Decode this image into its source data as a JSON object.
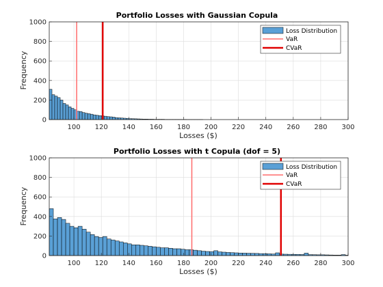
{
  "chart_data": [
    {
      "type": "bar",
      "title": "Portfolio Losses with Gaussian Copula",
      "xlabel": "Losses ($)",
      "ylabel": "Frequency",
      "xlim": [
        82,
        300
      ],
      "ylim": [
        0,
        1000
      ],
      "xticks": [
        "100",
        "120",
        "140",
        "160",
        "180",
        "200",
        "220",
        "240",
        "260",
        "280",
        "300"
      ],
      "yticks": [
        "0",
        "200",
        "400",
        "600",
        "800",
        "1000"
      ],
      "grid": true,
      "legend_position": "top-right",
      "bin_start": 82,
      "bin_width": 2,
      "series": [
        {
          "name": "Loss Distribution",
          "color": "#5aa0d6",
          "values": [
            310,
            255,
            240,
            225,
            200,
            165,
            150,
            130,
            115,
            100,
            85,
            82,
            72,
            65,
            60,
            55,
            48,
            44,
            40,
            38,
            34,
            30,
            28,
            25,
            20,
            18,
            16,
            14,
            12,
            10,
            9,
            8,
            7,
            6,
            5,
            5,
            4,
            4,
            3,
            3,
            3,
            3,
            2,
            2,
            2,
            2,
            2,
            2,
            2,
            2,
            1,
            1,
            1,
            1,
            1,
            1,
            0,
            0,
            0,
            0,
            0,
            0,
            0,
            0,
            0,
            0,
            0,
            0,
            0,
            0,
            0,
            0,
            0,
            0,
            0,
            0,
            0,
            0,
            0,
            0,
            0,
            0,
            0,
            0,
            0,
            0,
            0,
            0,
            0,
            0,
            0,
            0,
            0,
            0,
            0,
            0,
            0,
            0,
            0,
            0,
            0,
            0,
            0,
            0,
            0,
            0,
            0,
            0,
            0
          ]
        }
      ],
      "lines": [
        {
          "name": "VaR",
          "x": 102,
          "color": "#ff6b6b"
        },
        {
          "name": "CVaR",
          "x": 121,
          "color": "#e00000"
        }
      ]
    },
    {
      "type": "bar",
      "title": "Portfolio Losses with t Copula (dof = 5)",
      "xlabel": "Losses ($)",
      "ylabel": "Frequency",
      "xlim": [
        82,
        300
      ],
      "ylim": [
        0,
        1000
      ],
      "xticks": [
        "100",
        "120",
        "140",
        "160",
        "180",
        "200",
        "220",
        "240",
        "260",
        "280",
        "300"
      ],
      "yticks": [
        "0",
        "200",
        "400",
        "600",
        "800",
        "1000"
      ],
      "grid": true,
      "legend_position": "top-right",
      "bin_start": 82,
      "bin_width": 3,
      "series": [
        {
          "name": "Loss Distribution",
          "color": "#5aa0d6",
          "values": [
            480,
            375,
            390,
            370,
            330,
            300,
            285,
            300,
            270,
            240,
            215,
            195,
            185,
            195,
            170,
            160,
            150,
            140,
            130,
            120,
            110,
            110,
            105,
            100,
            95,
            90,
            85,
            80,
            80,
            75,
            70,
            70,
            65,
            60,
            60,
            55,
            50,
            45,
            42,
            40,
            50,
            38,
            35,
            32,
            30,
            28,
            26,
            25,
            24,
            23,
            22,
            20,
            20,
            18,
            16,
            28,
            15,
            14,
            13,
            12,
            12,
            11,
            25,
            10,
            9,
            8,
            8,
            7,
            6,
            5,
            5,
            10,
            4,
            3
          ]
        }
      ],
      "lines": [
        {
          "name": "VaR",
          "x": 186,
          "color": "#ff6b6b"
        },
        {
          "name": "CVaR",
          "x": 251,
          "color": "#e00000"
        }
      ]
    }
  ]
}
